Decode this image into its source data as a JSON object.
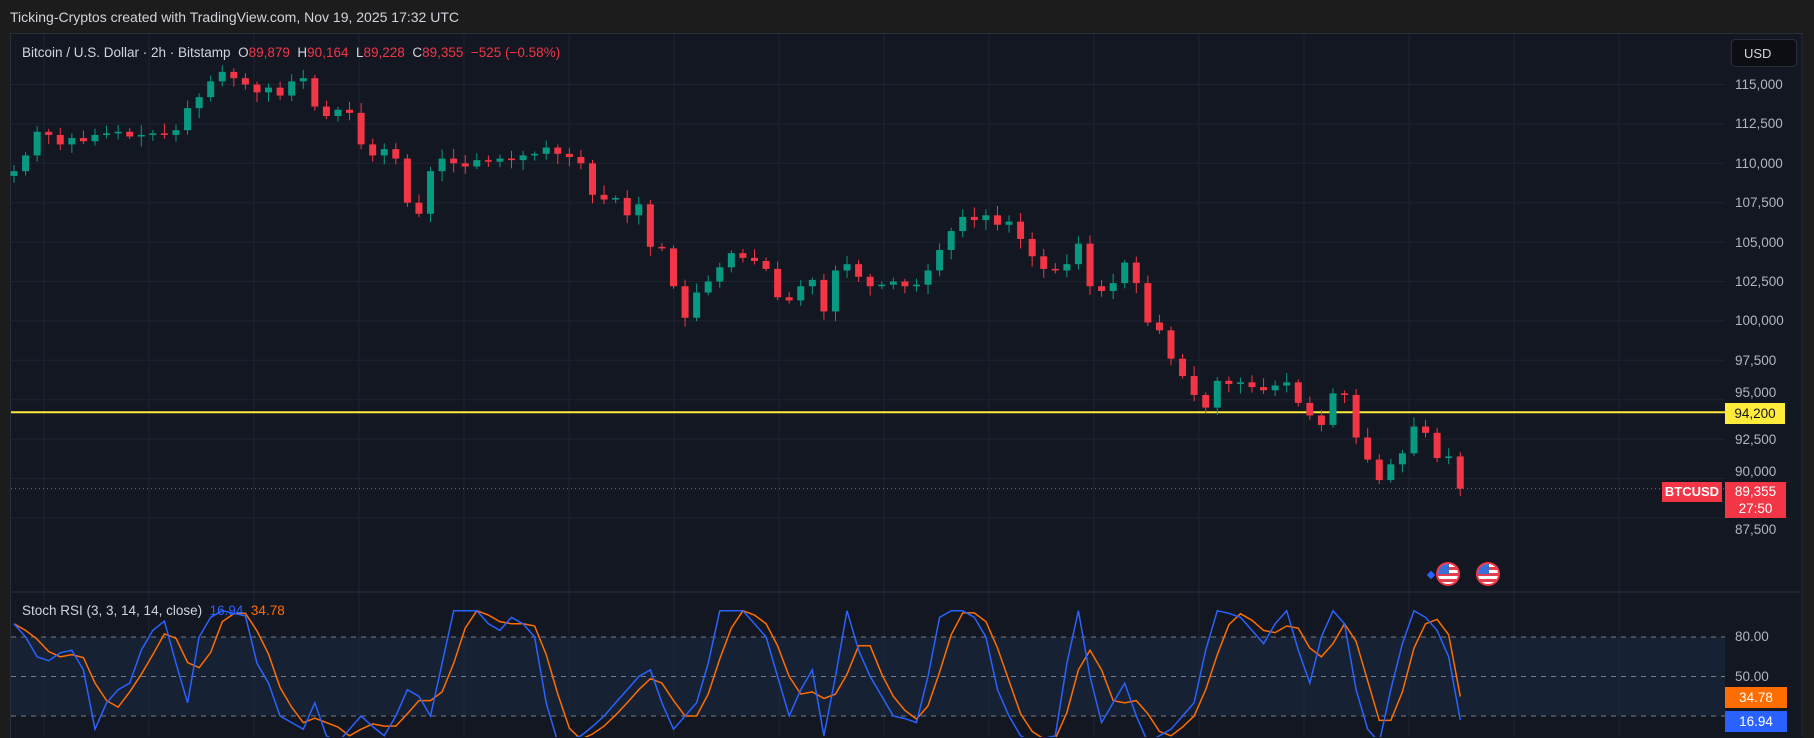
{
  "caption": "Ticking-Cryptos created with TradingView.com, Nov 19, 2025 17:32 UTC",
  "legend": {
    "symbol": "Bitcoin / U.S. Dollar · 2h · Bitstamp",
    "o_label": "O",
    "o": "89,879",
    "h_label": "H",
    "h": "90,164",
    "l_label": "L",
    "l": "89,228",
    "c_label": "C",
    "c": "89,355",
    "change": "−525 (−0.58%)"
  },
  "currency_button": "USD",
  "colors": {
    "up": "#089981",
    "down": "#f23645",
    "level": "#ffeb3b",
    "k": "#2962ff",
    "d": "#ff6d00",
    "background": "#131722"
  },
  "price_axis": {
    "ticks": [
      "115,000",
      "112,500",
      "110,000",
      "107,500",
      "105,000",
      "102,500",
      "100,000",
      "97,500",
      "95,000",
      "92,500",
      "90,000",
      "87,500"
    ]
  },
  "level_line": {
    "value": 94200,
    "label": "94,200"
  },
  "last_price": {
    "symbol": "BTCUSD",
    "price": "89,355",
    "countdown": "27:50",
    "value": 89355
  },
  "event_icons": [
    "us-flag-economic-event-icon",
    "us-flag-economic-event-icon"
  ],
  "stoch": {
    "title": "Stoch RSI (3, 3, 14, 14, close)",
    "k_value": "16.94",
    "d_value": "34.78",
    "levels": [
      "80.00",
      "50.00",
      "20.00"
    ],
    "axis_labels": [
      "80.00",
      "50.00"
    ]
  },
  "chart_data": {
    "type": "candlestick",
    "timeframe": "2h",
    "ylim": [
      86500,
      117000
    ],
    "closes": [
      109500,
      110500,
      112000,
      111800,
      111200,
      111600,
      111400,
      111800,
      111900,
      112000,
      111700,
      111800,
      111900,
      111800,
      112100,
      113500,
      114200,
      115200,
      115800,
      115400,
      115000,
      114500,
      114800,
      114300,
      115200,
      115400,
      113600,
      113000,
      113400,
      113200,
      111200,
      110500,
      110900,
      110300,
      107500,
      106800,
      109500,
      110300,
      110000,
      109800,
      110200,
      110100,
      110300,
      110200,
      110500,
      110600,
      111000,
      110600,
      110400,
      110000,
      108000,
      107700,
      107800,
      106700,
      107400,
      104700,
      104600,
      102200,
      100200,
      101800,
      102500,
      103400,
      104300,
      104000,
      103800,
      103300,
      101500,
      101300,
      102200,
      102600,
      100600,
      103200,
      103600,
      102800,
      102200,
      102300,
      102500,
      102200,
      102300,
      103200,
      104500,
      105700,
      106600,
      106400,
      106700,
      106100,
      106300,
      105200,
      104100,
      103300,
      103200,
      103600,
      104900,
      102200,
      101900,
      102400,
      103700,
      102400,
      99900,
      99400,
      97600,
      96500,
      95300,
      94500,
      96200,
      96000,
      96100,
      95800,
      95600,
      95900,
      96100,
      94800,
      94000,
      93400,
      95400,
      95300,
      92600,
      91200,
      89900,
      90900,
      91600,
      93300,
      92900,
      91300,
      91400,
      89355
    ],
    "stoch_k": [
      90,
      80,
      65,
      62,
      68,
      70,
      55,
      10,
      30,
      40,
      45,
      70,
      85,
      92,
      60,
      30,
      80,
      95,
      100,
      98,
      96,
      60,
      45,
      20,
      15,
      10,
      30,
      5,
      0,
      10,
      20,
      12,
      5,
      20,
      40,
      35,
      20,
      60,
      100,
      100,
      100,
      90,
      85,
      95,
      90,
      80,
      30,
      0,
      2,
      5,
      12,
      20,
      30,
      40,
      50,
      55,
      30,
      10,
      20,
      30,
      60,
      100,
      100,
      100,
      90,
      80,
      50,
      20,
      40,
      55,
      5,
      50,
      100,
      70,
      50,
      35,
      20,
      18,
      15,
      50,
      95,
      100,
      100,
      95,
      80,
      40,
      20,
      5,
      0,
      3,
      5,
      60,
      100,
      50,
      15,
      30,
      45,
      20,
      0,
      5,
      10,
      20,
      30,
      70,
      100,
      98,
      95,
      85,
      75,
      90,
      100,
      70,
      45,
      80,
      100,
      90,
      40,
      10,
      0,
      40,
      75,
      100,
      95,
      85,
      65,
      16.94
    ],
    "stoch_ylim": [
      0,
      100
    ]
  }
}
